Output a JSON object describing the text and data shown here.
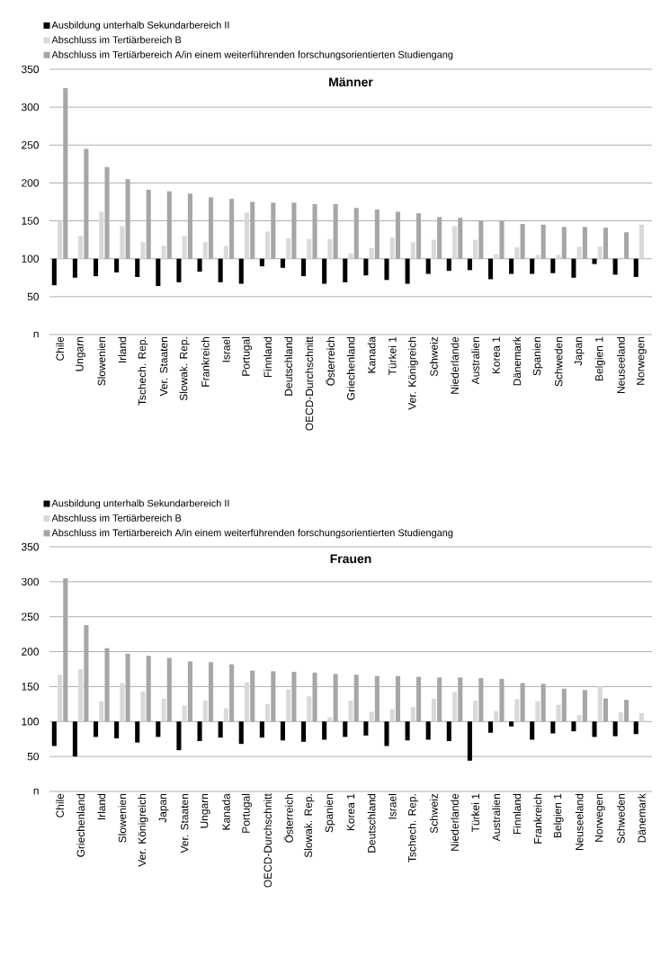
{
  "chart_data": [
    {
      "type": "bar",
      "title": "Männer",
      "categories": [
        "Chile",
        "Ungarn",
        "Slowenien",
        "Irland",
        "Tschech. Rep.",
        "Ver. Staaten",
        "Slowak. Rep.",
        "Frankreich",
        "Israel",
        "Portugal",
        "Finnland",
        "Deutschland",
        "OECD-Durchschnitt",
        "Österreich",
        "Griechenland",
        "Kanada",
        "Türkei 1",
        "Ver. Königreich",
        "Schweiz",
        "Niederlande",
        "Australien",
        "Korea 1",
        "Dänemark",
        "Spanien",
        "Schweden",
        "Japan",
        "Belgien 1",
        "Neuseeland",
        "Norwegen"
      ],
      "series": [
        {
          "name": "Ausbildung unterhalb Sekundarbereich II",
          "color": "#000000",
          "base": [
            100,
            100,
            100,
            100,
            100,
            100,
            100,
            100,
            100,
            100,
            100,
            100,
            100,
            100,
            100,
            100,
            100,
            100,
            100,
            100,
            100,
            100,
            100,
            100,
            100,
            100,
            100,
            100,
            100
          ],
          "values": [
            -35,
            -25,
            -23,
            -18,
            -24,
            -36,
            -31,
            -17,
            -31,
            -33,
            -10,
            -12,
            -23,
            -33,
            -31,
            -22,
            -28,
            -33,
            -20,
            -16,
            -15,
            -27,
            -20,
            -20,
            -19,
            -25,
            -7,
            -21,
            -24
          ]
        },
        {
          "name": "Abschluss im Tertiärbereich B",
          "color": "#d9d9d9",
          "base": [
            100,
            100,
            100,
            100,
            100,
            100,
            100,
            100,
            100,
            100,
            100,
            100,
            100,
            100,
            100,
            100,
            100,
            100,
            100,
            100,
            100,
            100,
            100,
            100,
            100,
            100,
            100,
            null,
            100
          ],
          "values": [
            50,
            30,
            62,
            43,
            22,
            17,
            30,
            22,
            17,
            61,
            36,
            27,
            26,
            26,
            7,
            14,
            28,
            22,
            25,
            43,
            25,
            6,
            15,
            5,
            5,
            16,
            16,
            null,
            45
          ]
        },
        {
          "name": "Abschluss im Tertiärbereich A/in einem weiterführenden forschungsorientierten Studiengang",
          "color": "#a6a6a6",
          "base": [
            100,
            100,
            100,
            100,
            100,
            100,
            100,
            100,
            100,
            100,
            100,
            100,
            100,
            100,
            100,
            100,
            100,
            100,
            100,
            100,
            100,
            100,
            100,
            100,
            100,
            100,
            100,
            100,
            null
          ],
          "values": [
            225,
            145,
            121,
            105,
            91,
            89,
            86,
            81,
            79,
            75,
            74,
            74,
            72,
            72,
            67,
            65,
            62,
            60,
            55,
            54,
            50,
            50,
            46,
            45,
            42,
            42,
            41,
            35,
            null
          ]
        }
      ],
      "ylim": [
        0,
        350
      ],
      "yticks": [
        {
          "value": 0,
          "label": "n"
        },
        50,
        100,
        150,
        200,
        250,
        300,
        350
      ],
      "grid": "y",
      "legend": "top left"
    },
    {
      "type": "bar",
      "title": "Frauen",
      "categories": [
        "Chile",
        "Griechenland",
        "Irland",
        "Slowenien",
        "Ver. Königreich",
        "Japan",
        "Ver. Staaten",
        "Ungarn",
        "Kanada",
        "Portugal",
        "OECD-Durchschnitt",
        "Österreich",
        "Slowak. Rep.",
        "Spanien",
        "Korea 1",
        "Deutschland",
        "Israel",
        "Tschech. Rep.",
        "Schweiz",
        "Niederlande",
        "Türkei 1",
        "Australien",
        "Finnland",
        "Frankreich",
        "Belgien 1",
        "Neuseeland",
        "Norwegen",
        "Schweden",
        "Dänemark"
      ],
      "series": [
        {
          "name": "Ausbildung unterhalb Sekundarbereich II",
          "color": "#000000",
          "base": [
            100,
            100,
            100,
            100,
            100,
            100,
            100,
            100,
            100,
            100,
            100,
            100,
            100,
            100,
            100,
            100,
            100,
            100,
            100,
            100,
            100,
            100,
            100,
            100,
            100,
            100,
            100,
            100,
            100
          ],
          "values": [
            -35,
            -50,
            -22,
            -24,
            -30,
            -22,
            -41,
            -28,
            -23,
            -32,
            -23,
            -27,
            -29,
            -26,
            -22,
            -20,
            -35,
            -27,
            -26,
            -28,
            -56,
            -16,
            -7,
            -26,
            -17,
            -14,
            -22,
            -21,
            -18
          ]
        },
        {
          "name": "Abschluss im Tertiärbereich B",
          "color": "#d9d9d9",
          "base": [
            100,
            100,
            100,
            100,
            100,
            100,
            100,
            100,
            100,
            100,
            100,
            100,
            100,
            100,
            100,
            100,
            100,
            100,
            100,
            100,
            100,
            100,
            100,
            100,
            100,
            100,
            100,
            100,
            100
          ],
          "values": [
            67,
            75,
            29,
            55,
            43,
            33,
            23,
            30,
            19,
            56,
            25,
            46,
            36,
            6,
            30,
            14,
            18,
            21,
            33,
            42,
            30,
            15,
            32,
            29,
            24,
            9,
            51,
            13,
            12
          ]
        },
        {
          "name": "Abschluss im Tertiärbereich A/in einem weiterführenden forschungsorientierten Studiengang",
          "color": "#a6a6a6",
          "base": [
            100,
            100,
            100,
            100,
            100,
            100,
            100,
            100,
            100,
            100,
            100,
            100,
            100,
            100,
            100,
            100,
            100,
            100,
            100,
            100,
            100,
            100,
            100,
            100,
            100,
            100,
            100,
            100,
            null
          ],
          "values": [
            205,
            138,
            105,
            97,
            94,
            91,
            86,
            85,
            82,
            73,
            72,
            71,
            70,
            68,
            67,
            65,
            65,
            64,
            63,
            63,
            62,
            61,
            55,
            54,
            47,
            45,
            33,
            31,
            null
          ]
        }
      ],
      "ylim": [
        0,
        350
      ],
      "yticks": [
        {
          "value": 0,
          "label": "n"
        },
        50,
        100,
        150,
        200,
        250,
        300,
        350
      ],
      "grid": "y",
      "legend": "top left"
    }
  ]
}
